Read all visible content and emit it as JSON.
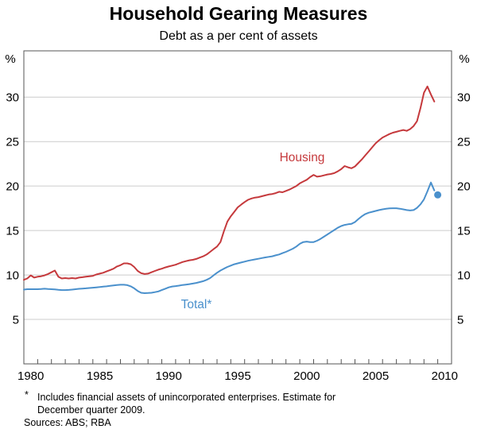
{
  "header": {
    "title": "Household Gearing Measures",
    "subtitle": "Debt as a per cent of assets"
  },
  "footnote": {
    "marker": "*",
    "line1": "Includes financial assets of unincorporated enterprises. Estimate for",
    "line2": "December quarter 2009.",
    "sources": "Sources: ABS; RBA"
  },
  "colors": {
    "housing": "#c5393c",
    "total": "#4a90cc",
    "grid": "#cccccc",
    "axis": "#555555",
    "text": "#000000"
  },
  "chart_data": {
    "type": "line",
    "title": "Household Gearing Measures",
    "subtitle": "Debt as a per cent of assets",
    "ylabel": "%",
    "xlim": [
      1980,
      2011
    ],
    "ylim": [
      0,
      35.2
    ],
    "y_ticks": [
      5,
      10,
      15,
      20,
      25,
      30
    ],
    "x_tick_years": [
      1981,
      1982,
      1983,
      1984,
      1985,
      1986,
      1987,
      1988,
      1989,
      1990,
      1991,
      1992,
      1993,
      1994,
      1995,
      1996,
      1997,
      1998,
      1999,
      2000,
      2001,
      2002,
      2003,
      2004,
      2005,
      2006,
      2007,
      2008,
      2009,
      2010
    ],
    "x_tick_labels": [
      1980,
      1985,
      1990,
      1995,
      2000,
      2005,
      2010
    ],
    "grid": true,
    "legend_position": "inline-labels",
    "x_start": 1980.0,
    "x_step": 0.25,
    "series": [
      {
        "name": "Housing",
        "color": "#c5393c",
        "values": [
          9.45,
          9.6,
          9.95,
          9.7,
          9.8,
          9.85,
          9.95,
          10.1,
          10.3,
          10.5,
          9.8,
          9.6,
          9.65,
          9.6,
          9.65,
          9.6,
          9.7,
          9.75,
          9.8,
          9.85,
          9.9,
          10.05,
          10.15,
          10.25,
          10.4,
          10.55,
          10.7,
          10.95,
          11.1,
          11.3,
          11.3,
          11.2,
          10.9,
          10.45,
          10.2,
          10.1,
          10.15,
          10.3,
          10.45,
          10.6,
          10.7,
          10.85,
          10.95,
          11.05,
          11.15,
          11.3,
          11.45,
          11.55,
          11.65,
          11.7,
          11.8,
          11.95,
          12.1,
          12.3,
          12.6,
          12.9,
          13.2,
          13.7,
          14.9,
          16.0,
          16.6,
          17.1,
          17.6,
          17.9,
          18.2,
          18.45,
          18.6,
          18.7,
          18.75,
          18.85,
          18.95,
          19.05,
          19.1,
          19.2,
          19.35,
          19.3,
          19.45,
          19.6,
          19.8,
          20.0,
          20.3,
          20.5,
          20.7,
          21.0,
          21.25,
          21.05,
          21.1,
          21.2,
          21.3,
          21.35,
          21.45,
          21.65,
          21.9,
          22.25,
          22.1,
          22.0,
          22.2,
          22.6,
          23.0,
          23.45,
          23.9,
          24.35,
          24.8,
          25.15,
          25.45,
          25.65,
          25.85,
          26.0,
          26.1,
          26.2,
          26.3,
          26.2,
          26.4,
          26.75,
          27.3,
          28.8,
          30.5,
          31.2,
          30.3,
          29.5
        ]
      },
      {
        "name": "Total*",
        "color": "#4a90cc",
        "values": [
          8.35,
          8.4,
          8.4,
          8.4,
          8.4,
          8.42,
          8.45,
          8.42,
          8.4,
          8.37,
          8.33,
          8.3,
          8.3,
          8.32,
          8.35,
          8.4,
          8.44,
          8.47,
          8.5,
          8.53,
          8.57,
          8.6,
          8.64,
          8.68,
          8.72,
          8.77,
          8.82,
          8.86,
          8.9,
          8.9,
          8.85,
          8.72,
          8.5,
          8.2,
          8.0,
          7.95,
          7.97,
          8.0,
          8.07,
          8.15,
          8.3,
          8.45,
          8.6,
          8.7,
          8.75,
          8.8,
          8.87,
          8.92,
          8.97,
          9.03,
          9.1,
          9.2,
          9.3,
          9.45,
          9.65,
          9.95,
          10.25,
          10.5,
          10.7,
          10.9,
          11.05,
          11.2,
          11.3,
          11.4,
          11.5,
          11.6,
          11.68,
          11.75,
          11.82,
          11.9,
          11.97,
          12.03,
          12.1,
          12.2,
          12.3,
          12.45,
          12.6,
          12.78,
          12.95,
          13.2,
          13.5,
          13.7,
          13.75,
          13.7,
          13.7,
          13.85,
          14.05,
          14.3,
          14.55,
          14.8,
          15.05,
          15.3,
          15.5,
          15.63,
          15.7,
          15.75,
          15.95,
          16.3,
          16.6,
          16.85,
          17.0,
          17.1,
          17.2,
          17.3,
          17.38,
          17.44,
          17.48,
          17.5,
          17.5,
          17.45,
          17.38,
          17.3,
          17.25,
          17.3,
          17.55,
          17.95,
          18.5,
          19.4,
          20.4,
          19.5
        ]
      }
    ],
    "estimate_dot": {
      "series": "Total*",
      "x": 2010.0,
      "value": 19.0,
      "color": "#4a90cc"
    }
  }
}
